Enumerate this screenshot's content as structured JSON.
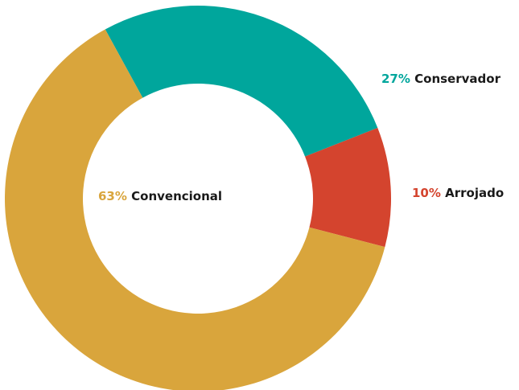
{
  "chart_data": {
    "type": "donut",
    "categories": [
      "Conservador",
      "Arrojado",
      "Convencional"
    ],
    "values": [
      27,
      10,
      63
    ],
    "value_labels": [
      "27%",
      "10%",
      "63%"
    ],
    "colors": [
      "#00a69c",
      "#d4442e",
      "#d9a53c"
    ]
  }
}
